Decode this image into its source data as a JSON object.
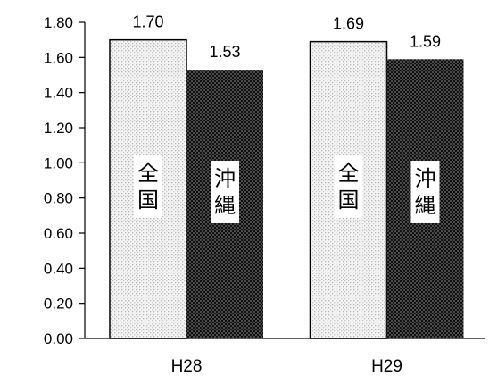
{
  "chart_data": {
    "type": "bar",
    "categories": [
      "H28",
      "H29"
    ],
    "series": [
      {
        "name": "全国",
        "values": [
          1.7,
          1.69
        ],
        "label_chars": [
          "全",
          "国"
        ],
        "pattern": "dotted-light",
        "color": "#d9d9d9"
      },
      {
        "name": "沖縄",
        "values": [
          1.53,
          1.59
        ],
        "label_chars": [
          "沖",
          "縄"
        ],
        "pattern": "checker-dark",
        "color": "#1a1a1a"
      }
    ],
    "data_labels": [
      [
        "1.70",
        "1.69"
      ],
      [
        "1.53",
        "1.59"
      ]
    ],
    "y_ticks": [
      "0.00",
      "0.20",
      "0.40",
      "0.60",
      "0.80",
      "1.00",
      "1.20",
      "1.40",
      "1.60",
      "1.80"
    ],
    "ylim": [
      0,
      1.8
    ],
    "title": "",
    "xlabel": "",
    "ylabel": "",
    "grid": false,
    "legend": "in-bar labels"
  }
}
